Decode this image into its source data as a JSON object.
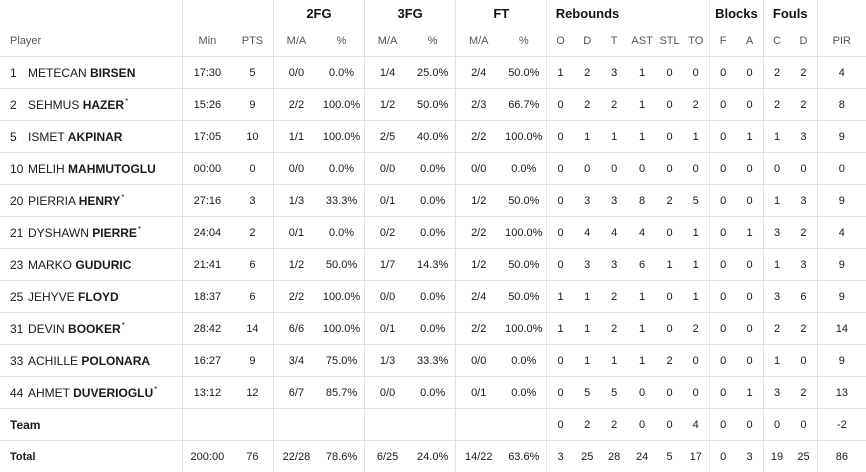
{
  "header": {
    "groups": {
      "fg2": "2FG",
      "fg3": "3FG",
      "ft": "FT",
      "rebounds": "Rebounds",
      "blocks": "Blocks",
      "fouls": "Fouls"
    },
    "columns": {
      "player": "Player",
      "min": "Min",
      "pts": "PTS",
      "fg2_ma": "M/A",
      "fg2_pct": "%",
      "fg3_ma": "M/A",
      "fg3_pct": "%",
      "ft_ma": "M/A",
      "ft_pct": "%",
      "reb_o": "O",
      "reb_d": "D",
      "reb_t": "T",
      "ast": "AST",
      "stl": "STL",
      "to": "TO",
      "blk_f": "F",
      "blk_a": "A",
      "foul_c": "C",
      "foul_d": "D",
      "pir": "PIR"
    }
  },
  "players": [
    {
      "num": "1",
      "first": "METECAN",
      "last": "BIRSEN",
      "starter": "",
      "min": "17:30",
      "pts": "5",
      "fg2_ma": "0/0",
      "fg2_pct": "0.0%",
      "fg3_ma": "1/4",
      "fg3_pct": "25.0%",
      "ft_ma": "2/4",
      "ft_pct": "50.0%",
      "reb_o": "1",
      "reb_d": "2",
      "reb_t": "3",
      "ast": "1",
      "stl": "0",
      "to": "0",
      "blk_f": "0",
      "blk_a": "0",
      "foul_c": "2",
      "foul_d": "2",
      "pir": "4"
    },
    {
      "num": "2",
      "first": "SEHMUS",
      "last": "HAZER",
      "starter": "*",
      "min": "15:26",
      "pts": "9",
      "fg2_ma": "2/2",
      "fg2_pct": "100.0%",
      "fg3_ma": "1/2",
      "fg3_pct": "50.0%",
      "ft_ma": "2/3",
      "ft_pct": "66.7%",
      "reb_o": "0",
      "reb_d": "2",
      "reb_t": "2",
      "ast": "1",
      "stl": "0",
      "to": "2",
      "blk_f": "0",
      "blk_a": "0",
      "foul_c": "2",
      "foul_d": "2",
      "pir": "8"
    },
    {
      "num": "5",
      "first": "ISMET",
      "last": "AKPINAR",
      "starter": "",
      "min": "17:05",
      "pts": "10",
      "fg2_ma": "1/1",
      "fg2_pct": "100.0%",
      "fg3_ma": "2/5",
      "fg3_pct": "40.0%",
      "ft_ma": "2/2",
      "ft_pct": "100.0%",
      "reb_o": "0",
      "reb_d": "1",
      "reb_t": "1",
      "ast": "1",
      "stl": "0",
      "to": "1",
      "blk_f": "0",
      "blk_a": "1",
      "foul_c": "1",
      "foul_d": "3",
      "pir": "9"
    },
    {
      "num": "10",
      "first": "MELIH",
      "last": "MAHMUTOGLU",
      "starter": "",
      "min": "00:00",
      "pts": "0",
      "fg2_ma": "0/0",
      "fg2_pct": "0.0%",
      "fg3_ma": "0/0",
      "fg3_pct": "0.0%",
      "ft_ma": "0/0",
      "ft_pct": "0.0%",
      "reb_o": "0",
      "reb_d": "0",
      "reb_t": "0",
      "ast": "0",
      "stl": "0",
      "to": "0",
      "blk_f": "0",
      "blk_a": "0",
      "foul_c": "0",
      "foul_d": "0",
      "pir": "0"
    },
    {
      "num": "20",
      "first": "PIERRIA",
      "last": "HENRY",
      "starter": "*",
      "min": "27:16",
      "pts": "3",
      "fg2_ma": "1/3",
      "fg2_pct": "33.3%",
      "fg3_ma": "0/1",
      "fg3_pct": "0.0%",
      "ft_ma": "1/2",
      "ft_pct": "50.0%",
      "reb_o": "0",
      "reb_d": "3",
      "reb_t": "3",
      "ast": "8",
      "stl": "2",
      "to": "5",
      "blk_f": "0",
      "blk_a": "0",
      "foul_c": "1",
      "foul_d": "3",
      "pir": "9"
    },
    {
      "num": "21",
      "first": "DYSHAWN",
      "last": "PIERRE",
      "starter": "*",
      "min": "24:04",
      "pts": "2",
      "fg2_ma": "0/1",
      "fg2_pct": "0.0%",
      "fg3_ma": "0/2",
      "fg3_pct": "0.0%",
      "ft_ma": "2/2",
      "ft_pct": "100.0%",
      "reb_o": "0",
      "reb_d": "4",
      "reb_t": "4",
      "ast": "4",
      "stl": "0",
      "to": "1",
      "blk_f": "0",
      "blk_a": "1",
      "foul_c": "3",
      "foul_d": "2",
      "pir": "4"
    },
    {
      "num": "23",
      "first": "MARKO",
      "last": "GUDURIC",
      "starter": "",
      "min": "21:41",
      "pts": "6",
      "fg2_ma": "1/2",
      "fg2_pct": "50.0%",
      "fg3_ma": "1/7",
      "fg3_pct": "14.3%",
      "ft_ma": "1/2",
      "ft_pct": "50.0%",
      "reb_o": "0",
      "reb_d": "3",
      "reb_t": "3",
      "ast": "6",
      "stl": "1",
      "to": "1",
      "blk_f": "0",
      "blk_a": "0",
      "foul_c": "1",
      "foul_d": "3",
      "pir": "9"
    },
    {
      "num": "25",
      "first": "JEHYVE",
      "last": "FLOYD",
      "starter": "",
      "min": "18:37",
      "pts": "6",
      "fg2_ma": "2/2",
      "fg2_pct": "100.0%",
      "fg3_ma": "0/0",
      "fg3_pct": "0.0%",
      "ft_ma": "2/4",
      "ft_pct": "50.0%",
      "reb_o": "1",
      "reb_d": "1",
      "reb_t": "2",
      "ast": "1",
      "stl": "0",
      "to": "1",
      "blk_f": "0",
      "blk_a": "0",
      "foul_c": "3",
      "foul_d": "6",
      "pir": "9"
    },
    {
      "num": "31",
      "first": "DEVIN",
      "last": "BOOKER",
      "starter": "*",
      "min": "28:42",
      "pts": "14",
      "fg2_ma": "6/6",
      "fg2_pct": "100.0%",
      "fg3_ma": "0/1",
      "fg3_pct": "0.0%",
      "ft_ma": "2/2",
      "ft_pct": "100.0%",
      "reb_o": "1",
      "reb_d": "1",
      "reb_t": "2",
      "ast": "1",
      "stl": "0",
      "to": "2",
      "blk_f": "0",
      "blk_a": "0",
      "foul_c": "2",
      "foul_d": "2",
      "pir": "14"
    },
    {
      "num": "33",
      "first": "ACHILLE",
      "last": "POLONARA",
      "starter": "",
      "min": "16:27",
      "pts": "9",
      "fg2_ma": "3/4",
      "fg2_pct": "75.0%",
      "fg3_ma": "1/3",
      "fg3_pct": "33.3%",
      "ft_ma": "0/0",
      "ft_pct": "0.0%",
      "reb_o": "0",
      "reb_d": "1",
      "reb_t": "1",
      "ast": "1",
      "stl": "2",
      "to": "0",
      "blk_f": "0",
      "blk_a": "0",
      "foul_c": "1",
      "foul_d": "0",
      "pir": "9"
    },
    {
      "num": "44",
      "first": "AHMET",
      "last": "DUVERIOGLU",
      "starter": "*",
      "min": "13:12",
      "pts": "12",
      "fg2_ma": "6/7",
      "fg2_pct": "85.7%",
      "fg3_ma": "0/0",
      "fg3_pct": "0.0%",
      "ft_ma": "0/1",
      "ft_pct": "0.0%",
      "reb_o": "0",
      "reb_d": "5",
      "reb_t": "5",
      "ast": "0",
      "stl": "0",
      "to": "0",
      "blk_f": "0",
      "blk_a": "1",
      "foul_c": "3",
      "foul_d": "2",
      "pir": "13"
    }
  ],
  "team": {
    "label": "Team",
    "reb_o": "0",
    "reb_d": "2",
    "reb_t": "2",
    "ast": "0",
    "stl": "0",
    "to": "4",
    "blk_f": "0",
    "blk_a": "0",
    "foul_c": "0",
    "foul_d": "0",
    "pir": "-2"
  },
  "total": {
    "label": "Total",
    "min": "200:00",
    "pts": "76",
    "fg2_ma": "22/28",
    "fg2_pct": "78.6%",
    "fg3_ma": "6/25",
    "fg3_pct": "24.0%",
    "ft_ma": "14/22",
    "ft_pct": "63.6%",
    "reb_o": "3",
    "reb_d": "25",
    "reb_t": "28",
    "ast": "24",
    "stl": "5",
    "to": "17",
    "blk_f": "0",
    "blk_a": "3",
    "foul_c": "19",
    "foul_d": "25",
    "pir": "86"
  }
}
